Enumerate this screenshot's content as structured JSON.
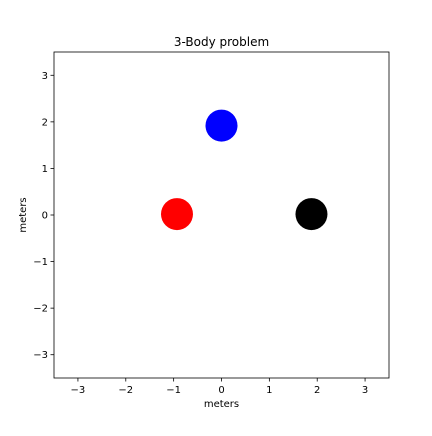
{
  "chart_data": {
    "type": "scatter",
    "title": "3-Body problem",
    "xlabel": "meters",
    "ylabel": "meters",
    "xlim": [
      -3.5,
      3.5
    ],
    "ylim": [
      -3.5,
      3.5
    ],
    "xticks": [
      -3,
      -2,
      -1,
      0,
      1,
      2,
      3
    ],
    "yticks": [
      -3,
      -2,
      -1,
      0,
      1,
      2,
      3
    ],
    "tick_labels_x": [
      "−3",
      "−2",
      "−1",
      "0",
      "1",
      "2",
      "3"
    ],
    "tick_labels_y": [
      "−3",
      "−2",
      "−1",
      "0",
      "1",
      "2",
      "3"
    ],
    "grid": false,
    "points": [
      {
        "x": -0.93,
        "y": 0.02,
        "color": "#ff0000"
      },
      {
        "x": 0.0,
        "y": 1.92,
        "color": "#0000ff"
      },
      {
        "x": 1.88,
        "y": 0.02,
        "color": "#000000"
      }
    ]
  }
}
